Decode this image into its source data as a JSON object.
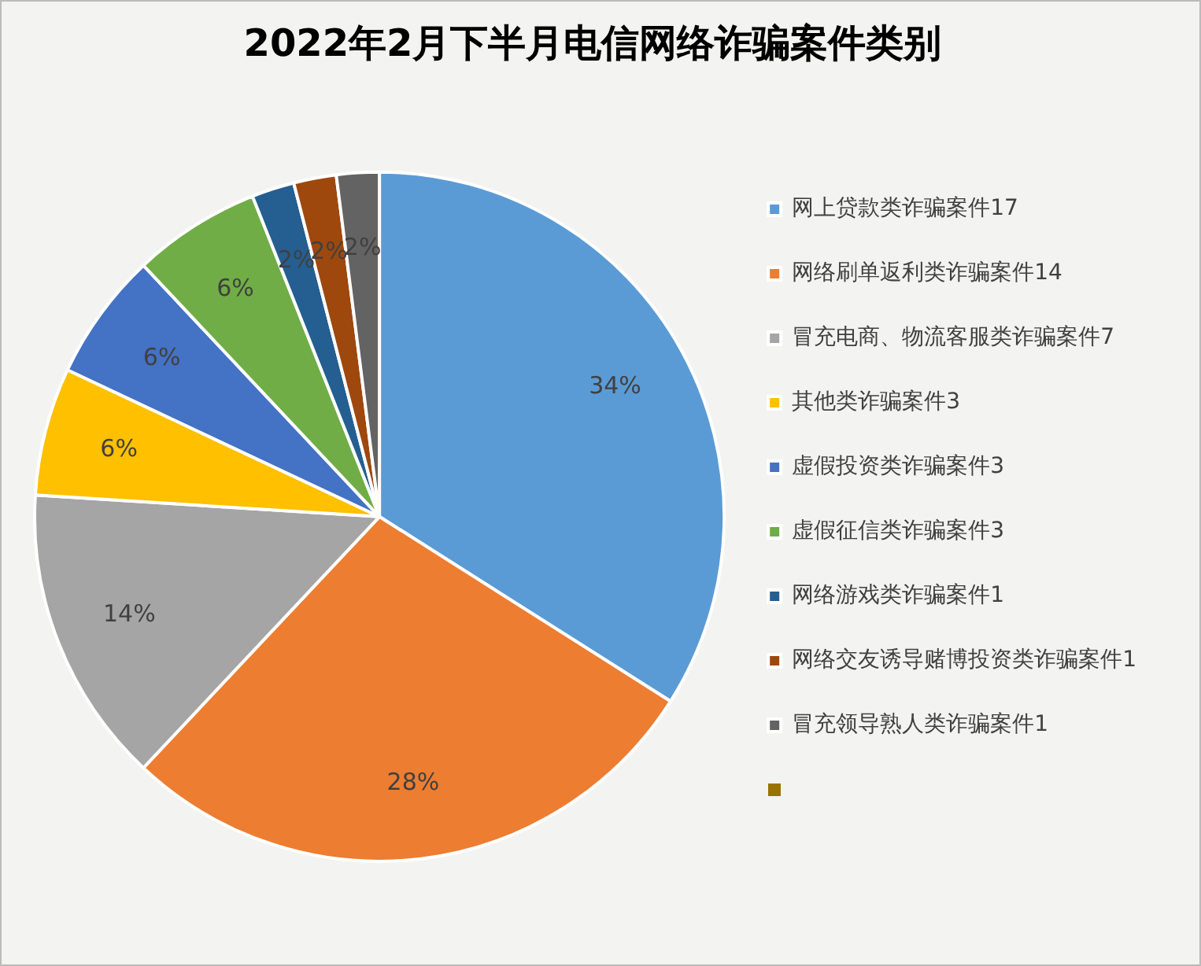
{
  "chart_data": {
    "type": "pie",
    "title": "2022年2月下半月电信网络诈骗案件类别",
    "categories": [
      "网上贷款类诈骗案件17",
      "网络刷单返利类诈骗案件14",
      "冒充电商、物流客服类诈骗案件7",
      "其他类诈骗案件3",
      "虚假投资类诈骗案件3",
      "虚假征信类诈骗案件3",
      "网络游戏类诈骗案件1",
      "网络交友诱导赌博投资类诈骗案件1",
      "冒充领导熟人类诈骗案件1"
    ],
    "values": [
      34,
      28,
      14,
      6,
      6,
      6,
      2,
      2,
      2
    ],
    "value_labels": [
      "34%",
      "28%",
      "14%",
      "6%",
      "6%",
      "6%",
      "2%",
      "2%",
      "2%"
    ],
    "colors": [
      "#5b9bd5",
      "#ed7d31",
      "#a5a5a5",
      "#ffc000",
      "#4472c4",
      "#70ad47",
      "#255e91",
      "#9e480e",
      "#636363"
    ],
    "legend": "right"
  }
}
